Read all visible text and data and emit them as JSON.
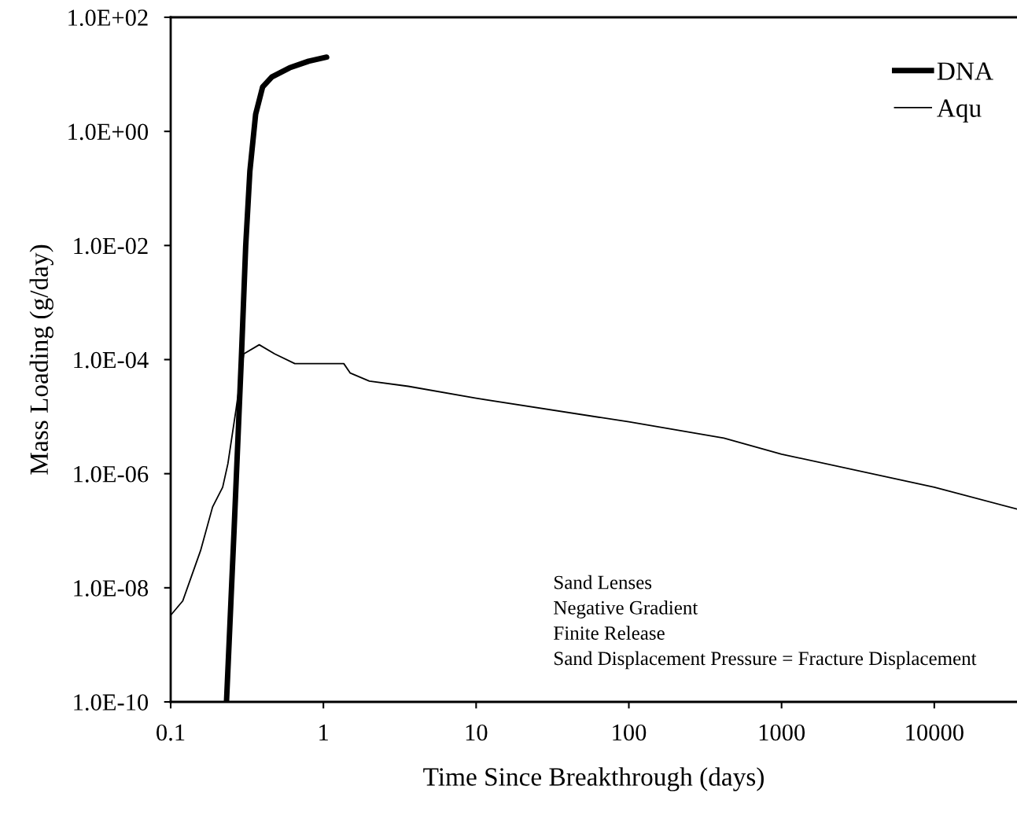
{
  "chart_data": {
    "type": "line",
    "xlabel": "Time Since Breakthrough (days)",
    "ylabel": "Mass Loading (g/day)",
    "log": "xy",
    "grid": false,
    "legend": "top right",
    "marker": "none",
    "xlim": [
      0.1,
      34800
    ],
    "xticks": [
      0.1,
      1,
      10,
      100,
      1000,
      10000
    ],
    "ylim": [
      1e-10,
      100
    ],
    "yticks": [
      {
        "value": 100,
        "label": "1.0E+02"
      },
      {
        "value": 1,
        "label": "1.0E+00"
      },
      {
        "value": 0.01,
        "label": "1.0E-02"
      },
      {
        "value": 0.0001,
        "label": "1.0E-04"
      },
      {
        "value": 1e-06,
        "label": "1.0E-06"
      },
      {
        "value": 1e-08,
        "label": "1.0E-08"
      },
      {
        "value": 1e-10,
        "label": "1.0E-10"
      }
    ],
    "series": [
      {
        "name": "DNA",
        "color": "#000000",
        "x": [
          0.232,
          0.26,
          0.29,
          0.31,
          0.33,
          0.36,
          0.4,
          0.46,
          0.6,
          0.8,
          1.05
        ],
        "values": [
          1e-10,
          1e-07,
          0.0001,
          0.01,
          0.2,
          2,
          6,
          9,
          13,
          17,
          20
        ]
      },
      {
        "name": "Aqu",
        "color": "#000000",
        "x": [
          0.1,
          0.12,
          0.157,
          0.188,
          0.219,
          0.237,
          0.268,
          0.301,
          0.38,
          0.48,
          0.65,
          1.0,
          1.36,
          1.5,
          2.0,
          3.6,
          10,
          100,
          419,
          1000,
          10000,
          34800
        ],
        "values": [
          3.3e-09,
          5.9e-09,
          4.5e-08,
          2.6e-07,
          5.8e-07,
          1.5e-06,
          1.35e-05,
          0.000126,
          0.000182,
          0.000126,
          8.5e-05,
          8.5e-05,
          8.5e-05,
          5.8e-05,
          4.2e-05,
          3.4e-05,
          2.1e-05,
          8.1e-06,
          4.2e-06,
          2.2e-06,
          5.8e-07,
          2.4e-07
        ]
      }
    ],
    "annotations": [
      "Sand Lenses\nNegative Gradient\nFinite Release\nSand Displacement Pressure = Fracture Displacement"
    ]
  }
}
